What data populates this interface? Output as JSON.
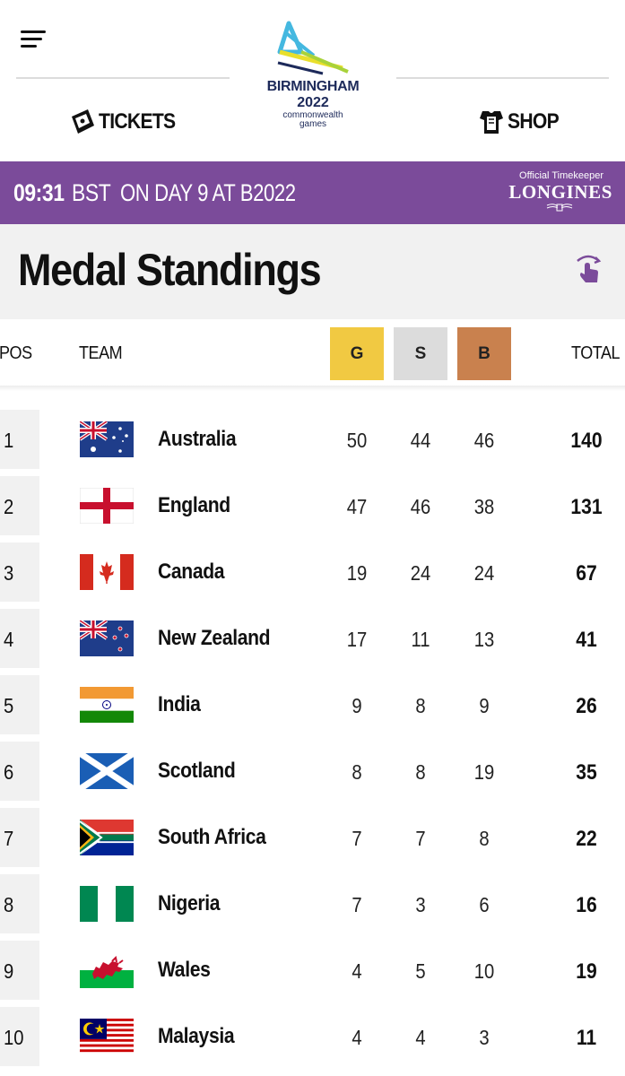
{
  "header": {
    "logo": {
      "line1": "BIRMINGHAM",
      "line2": "2022",
      "line3": "commonwealth",
      "line4": "games"
    },
    "nav": {
      "tickets": "TICKETS",
      "shop": "SHOP"
    }
  },
  "timebar": {
    "time": "09:31",
    "timezone": "BST",
    "day_text": "ON DAY 9 AT B2022",
    "timekeeper_label": "Official Timekeeper",
    "brand": "LONGINES"
  },
  "title": "Medal Standings",
  "table": {
    "headers": {
      "pos": "POS",
      "team": "TEAM",
      "gold": "G",
      "silver": "S",
      "bronze": "B",
      "total": "TOTAL"
    },
    "rows": [
      {
        "pos": "1",
        "team": "Australia",
        "gold": "50",
        "silver": "44",
        "bronze": "46",
        "total": "140"
      },
      {
        "pos": "2",
        "team": "England",
        "gold": "47",
        "silver": "46",
        "bronze": "38",
        "total": "131"
      },
      {
        "pos": "3",
        "team": "Canada",
        "gold": "19",
        "silver": "24",
        "bronze": "24",
        "total": "67"
      },
      {
        "pos": "4",
        "team": "New Zealand",
        "gold": "17",
        "silver": "11",
        "bronze": "13",
        "total": "41"
      },
      {
        "pos": "5",
        "team": "India",
        "gold": "9",
        "silver": "8",
        "bronze": "9",
        "total": "26"
      },
      {
        "pos": "6",
        "team": "Scotland",
        "gold": "8",
        "silver": "8",
        "bronze": "19",
        "total": "35"
      },
      {
        "pos": "7",
        "team": "South Africa",
        "gold": "7",
        "silver": "7",
        "bronze": "8",
        "total": "22"
      },
      {
        "pos": "8",
        "team": "Nigeria",
        "gold": "7",
        "silver": "3",
        "bronze": "6",
        "total": "16"
      },
      {
        "pos": "9",
        "team": "Wales",
        "gold": "4",
        "silver": "5",
        "bronze": "10",
        "total": "19"
      },
      {
        "pos": "10",
        "team": "Malaysia",
        "gold": "4",
        "silver": "4",
        "bronze": "3",
        "total": "11"
      }
    ]
  },
  "colors": {
    "purple_bar": "#7b4b9a",
    "gold": "#f1c942",
    "silver": "#dcdcdc",
    "bronze": "#c9814e",
    "accent_icon": "#7b4b9a"
  },
  "icons": {
    "menu": "hamburger-menu-icon",
    "tickets": "ticket-icon",
    "shop": "shirt-icon",
    "rotate": "rotate-device-icon"
  }
}
